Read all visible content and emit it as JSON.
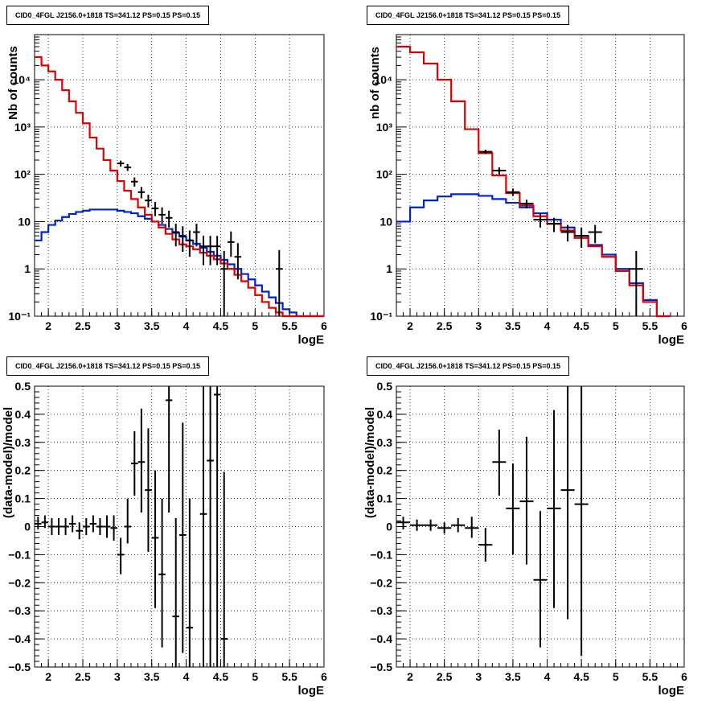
{
  "panels": [
    {
      "title": "CID0_4FGL J2156.0+1818 TS=341.12 PS=0.15 PS=0.15",
      "xlabel": "logE",
      "ylabel": "Nb of counts"
    },
    {
      "title": "CID0_4FGL J2156.0+1818 TS=341.12 PS=0.15 PS=0.15",
      "xlabel": "logE",
      "ylabel": "nb of counts"
    },
    {
      "title": "CID0_4FGL J2156.0+1818 TS=341.12 PS=0.15 PS=0.15",
      "xlabel": "logE",
      "ylabel": "(data-model)/model"
    },
    {
      "title": "CID0_4FGL J2156.0+1818 TS=341.12 PS=0.15 PS=0.15",
      "xlabel": "logE",
      "ylabel": "(data-model)/model"
    }
  ],
  "colors": {
    "total_model": "#dd0000",
    "source_model": "#0022cc",
    "data": "#000000",
    "grid": "#000000"
  },
  "chart_data": [
    {
      "type": "line",
      "title": "CID0_4FGL J2156.0+1818 TS=341.12 PS=0.15 PS=0.15",
      "xlabel": "logE",
      "ylabel": "Nb of counts",
      "xlim": [
        1.8,
        6.0
      ],
      "ylim": [
        0.1,
        90000
      ],
      "yscale": "log",
      "grid": true,
      "xticks": [
        "2",
        "2.5",
        "3",
        "3.5",
        "4",
        "4.5",
        "5",
        "5.5",
        "6"
      ],
      "yticks": [
        "10⁻¹",
        "1",
        "10",
        "10²",
        "10³",
        "10⁴"
      ],
      "bin_edges": [
        1.8,
        1.9,
        2.0,
        2.1,
        2.2,
        2.3,
        2.4,
        2.5,
        2.6,
        2.7,
        2.8,
        2.9,
        3.0,
        3.1,
        3.2,
        3.3,
        3.4,
        3.5,
        3.6,
        3.7,
        3.8,
        3.9,
        4.0,
        4.1,
        4.2,
        4.3,
        4.4,
        4.5,
        4.6,
        4.7,
        4.8,
        4.9,
        5.0,
        5.1,
        5.2,
        5.3,
        5.4,
        5.5,
        5.6,
        5.7,
        5.8,
        5.9,
        6.0
      ],
      "series": [
        {
          "name": "total model",
          "values": [
            30000,
            20000,
            15000,
            10000,
            6000,
            3500,
            2000,
            1200,
            600,
            350,
            200,
            120,
            72,
            45,
            30,
            20,
            14,
            10,
            7.5,
            5.5,
            4.2,
            3.3,
            3.0,
            2.6,
            2.2,
            1.9,
            1.6,
            1.3,
            1.0,
            0.75,
            0.55,
            0.4,
            0.28,
            0.2,
            0.15,
            0.12,
            0.1,
            0.1,
            0.1,
            0.1,
            0.1,
            0.1
          ]
        },
        {
          "name": "source model",
          "values": [
            4.0,
            6.0,
            8.5,
            10.5,
            12.5,
            14.5,
            16.0,
            17.0,
            18.0,
            18.0,
            18.0,
            18.0,
            17.0,
            16.0,
            15.0,
            13.0,
            11.5,
            10.0,
            8.5,
            7.0,
            5.8,
            4.8,
            4.0,
            3.4,
            2.8,
            2.3,
            1.9,
            1.55,
            1.25,
            1.0,
            0.78,
            0.6,
            0.45,
            0.33,
            0.25,
            0.19,
            0.14,
            0.12,
            0.1,
            0.1,
            0.1,
            0.1
          ]
        }
      ],
      "points": [
        {
          "x": 3.05,
          "y": 170,
          "ylo": 145,
          "yhi": 195
        },
        {
          "x": 3.15,
          "y": 140,
          "ylo": 118,
          "yhi": 165
        },
        {
          "x": 3.25,
          "y": 70,
          "ylo": 55,
          "yhi": 86
        },
        {
          "x": 3.35,
          "y": 42,
          "ylo": 31,
          "yhi": 54
        },
        {
          "x": 3.45,
          "y": 28,
          "ylo": 20,
          "yhi": 37
        },
        {
          "x": 3.55,
          "y": 19,
          "ylo": 13,
          "yhi": 26
        },
        {
          "x": 3.65,
          "y": 14,
          "ylo": 9,
          "yhi": 20
        },
        {
          "x": 3.75,
          "y": 12,
          "ylo": 7.5,
          "yhi": 17
        },
        {
          "x": 3.85,
          "y": 6,
          "ylo": 3,
          "yhi": 9
        },
        {
          "x": 3.95,
          "y": 5,
          "ylo": 2.3,
          "yhi": 8
        },
        {
          "x": 4.05,
          "y": 4,
          "ylo": 1.8,
          "yhi": 6.5
        },
        {
          "x": 4.15,
          "y": 6,
          "ylo": 3,
          "yhi": 9
        },
        {
          "x": 4.25,
          "y": 3,
          "ylo": 1.2,
          "yhi": 5
        },
        {
          "x": 4.35,
          "y": 3,
          "ylo": 1.2,
          "yhi": 5
        },
        {
          "x": 4.45,
          "y": 3,
          "ylo": 1.2,
          "yhi": 5
        },
        {
          "x": 4.55,
          "y": 1.0,
          "ylo": 0.1,
          "yhi": 2.4
        },
        {
          "x": 4.65,
          "y": 3.7,
          "ylo": 1.8,
          "yhi": 6.2
        },
        {
          "x": 4.75,
          "y": 1.8,
          "ylo": 0.6,
          "yhi": 3.5
        },
        {
          "x": 5.35,
          "y": 1.0,
          "ylo": 0.1,
          "yhi": 2.5
        }
      ]
    },
    {
      "type": "line",
      "title": "CID0_4FGL J2156.0+1818 TS=341.12 PS=0.15 PS=0.15",
      "xlabel": "logE",
      "ylabel": "nb of counts",
      "xlim": [
        1.8,
        6.0
      ],
      "ylim": [
        0.1,
        90000
      ],
      "yscale": "log",
      "grid": true,
      "xticks": [
        "2",
        "2.5",
        "3",
        "3.5",
        "4",
        "4.5",
        "5",
        "5.5",
        "6"
      ],
      "yticks": [
        "10⁻¹",
        "1",
        "10",
        "10²",
        "10³",
        "10⁴"
      ],
      "bin_edges": [
        1.8,
        2.0,
        2.2,
        2.4,
        2.6,
        2.8,
        3.0,
        3.2,
        3.4,
        3.6,
        3.8,
        4.0,
        4.2,
        4.4,
        4.6,
        4.8,
        5.0,
        5.2,
        5.4,
        5.6,
        5.8,
        6.0
      ],
      "series": [
        {
          "name": "total model",
          "values": [
            50000,
            38000,
            22000,
            10000,
            3500,
            900,
            280,
            95,
            40,
            22,
            13,
            9,
            6.5,
            4.5,
            3.0,
            1.8,
            0.9,
            0.45,
            0.2,
            0.1
          ]
        },
        {
          "name": "source model",
          "values": [
            10,
            20,
            28,
            34,
            38,
            38,
            35,
            30,
            25,
            20,
            15,
            11,
            7.5,
            5.0,
            3.2,
            2.0,
            1.0,
            0.5,
            0.22,
            0.1
          ]
        }
      ],
      "points": [
        {
          "x": 3.1,
          "y": 300,
          "ylo": 270,
          "yhi": 330
        },
        {
          "x": 3.3,
          "y": 120,
          "ylo": 100,
          "yhi": 140
        },
        {
          "x": 3.5,
          "y": 42,
          "ylo": 35,
          "yhi": 50
        },
        {
          "x": 3.7,
          "y": 24,
          "ylo": 19,
          "yhi": 29
        },
        {
          "x": 3.9,
          "y": 11,
          "ylo": 7.5,
          "yhi": 15
        },
        {
          "x": 4.1,
          "y": 9,
          "ylo": 6,
          "yhi": 12
        },
        {
          "x": 4.3,
          "y": 6,
          "ylo": 3.8,
          "yhi": 8.5
        },
        {
          "x": 4.5,
          "y": 5,
          "ylo": 2.8,
          "yhi": 7.5
        },
        {
          "x": 4.7,
          "y": 6,
          "ylo": 3.5,
          "yhi": 8.5
        },
        {
          "x": 5.3,
          "y": 1.0,
          "ylo": 0.1,
          "yhi": 2.4
        }
      ]
    },
    {
      "type": "scatter",
      "title": "CID0_4FGL J2156.0+1818 TS=341.12 PS=0.15 PS=0.15",
      "xlabel": "logE",
      "ylabel": "(data-model)/model",
      "xlim": [
        1.8,
        6.0
      ],
      "ylim": [
        -0.5,
        0.5
      ],
      "grid": true,
      "xticks": [
        "2",
        "2.5",
        "3",
        "3.5",
        "4",
        "4.5",
        "5",
        "5.5",
        "6"
      ],
      "yticks": [
        "−0.5",
        "−0.4",
        "−0.3",
        "−0.2",
        "−0.1",
        "0",
        "0.1",
        "0.2",
        "0.3",
        "0.4",
        "0.5"
      ],
      "xerr": 0.05,
      "points": [
        {
          "x": 1.85,
          "y": 0.01,
          "ylo": -0.01,
          "yhi": 0.035
        },
        {
          "x": 1.95,
          "y": 0.015,
          "ylo": -0.005,
          "yhi": 0.04
        },
        {
          "x": 2.05,
          "y": 0.0,
          "ylo": -0.03,
          "yhi": 0.03
        },
        {
          "x": 2.15,
          "y": 0.0,
          "ylo": -0.03,
          "yhi": 0.03
        },
        {
          "x": 2.25,
          "y": 0.0,
          "ylo": -0.03,
          "yhi": 0.03
        },
        {
          "x": 2.35,
          "y": 0.01,
          "ylo": -0.02,
          "yhi": 0.04
        },
        {
          "x": 2.45,
          "y": -0.015,
          "ylo": -0.045,
          "yhi": 0.015
        },
        {
          "x": 2.55,
          "y": 0.0,
          "ylo": -0.03,
          "yhi": 0.03
        },
        {
          "x": 2.65,
          "y": 0.01,
          "ylo": -0.02,
          "yhi": 0.04
        },
        {
          "x": 2.75,
          "y": 0.0,
          "ylo": -0.03,
          "yhi": 0.03
        },
        {
          "x": 2.85,
          "y": 0.0,
          "ylo": -0.04,
          "yhi": 0.04
        },
        {
          "x": 2.95,
          "y": -0.005,
          "ylo": -0.05,
          "yhi": 0.04
        },
        {
          "x": 3.05,
          "y": -0.1,
          "ylo": -0.17,
          "yhi": -0.04
        },
        {
          "x": 3.15,
          "y": 0.0,
          "ylo": -0.06,
          "yhi": 0.1
        },
        {
          "x": 3.25,
          "y": 0.225,
          "ylo": 0.11,
          "yhi": 0.34
        },
        {
          "x": 3.35,
          "y": 0.23,
          "ylo": 0.05,
          "yhi": 0.42
        },
        {
          "x": 3.45,
          "y": 0.13,
          "ylo": -0.09,
          "yhi": 0.35
        },
        {
          "x": 3.55,
          "y": -0.04,
          "ylo": -0.29,
          "yhi": 0.2
        },
        {
          "x": 3.65,
          "y": -0.17,
          "ylo": -0.43,
          "yhi": 0.1
        },
        {
          "x": 3.75,
          "y": 0.45,
          "ylo": 0.05,
          "yhi": 0.5
        },
        {
          "x": 3.85,
          "y": -0.32,
          "ylo": -0.5,
          "yhi": 0.03
        },
        {
          "x": 3.95,
          "y": -0.03,
          "ylo": -0.45,
          "yhi": 0.37
        },
        {
          "x": 4.05,
          "y": -0.36,
          "ylo": -0.5,
          "yhi": 0.1
        },
        {
          "x": 4.25,
          "y": 0.045,
          "ylo": -0.5,
          "yhi": 0.5
        },
        {
          "x": 4.35,
          "y": 0.235,
          "ylo": -0.5,
          "yhi": 0.5
        },
        {
          "x": 4.45,
          "y": 0.47,
          "ylo": -0.5,
          "yhi": 0.5
        },
        {
          "x": 4.55,
          "y": -0.4,
          "ylo": -0.5,
          "yhi": 0.195
        }
      ]
    },
    {
      "type": "scatter",
      "title": "CID0_4FGL J2156.0+1818 TS=341.12 PS=0.15 PS=0.15",
      "xlabel": "logE",
      "ylabel": "(data-model)/model",
      "xlim": [
        1.8,
        6.0
      ],
      "ylim": [
        -0.5,
        0.5
      ],
      "grid": true,
      "xticks": [
        "2",
        "2.5",
        "3",
        "3.5",
        "4",
        "4.5",
        "5",
        "5.5",
        "6"
      ],
      "yticks": [
        "−0.5",
        "−0.4",
        "−0.3",
        "−0.2",
        "−0.1",
        "0",
        "0.1",
        "0.2",
        "0.3",
        "0.4",
        "0.5"
      ],
      "xerr": 0.1,
      "points": [
        {
          "x": 1.9,
          "y": 0.015,
          "ylo": -0.01,
          "yhi": 0.035
        },
        {
          "x": 2.1,
          "y": 0.005,
          "ylo": -0.015,
          "yhi": 0.025
        },
        {
          "x": 2.3,
          "y": 0.005,
          "ylo": -0.015,
          "yhi": 0.025
        },
        {
          "x": 2.5,
          "y": -0.005,
          "ylo": -0.025,
          "yhi": 0.015
        },
        {
          "x": 2.7,
          "y": 0.005,
          "ylo": -0.02,
          "yhi": 0.03
        },
        {
          "x": 2.9,
          "y": -0.005,
          "ylo": -0.04,
          "yhi": 0.035
        },
        {
          "x": 3.1,
          "y": -0.065,
          "ylo": -0.125,
          "yhi": -0.005
        },
        {
          "x": 3.3,
          "y": 0.23,
          "ylo": 0.11,
          "yhi": 0.345
        },
        {
          "x": 3.5,
          "y": 0.065,
          "ylo": -0.1,
          "yhi": 0.225
        },
        {
          "x": 3.7,
          "y": 0.09,
          "ylo": -0.135,
          "yhi": 0.32
        },
        {
          "x": 3.9,
          "y": -0.19,
          "ylo": -0.43,
          "yhi": 0.055
        },
        {
          "x": 4.1,
          "y": 0.065,
          "ylo": -0.29,
          "yhi": 0.415
        },
        {
          "x": 4.3,
          "y": 0.13,
          "ylo": -0.33,
          "yhi": 0.5
        },
        {
          "x": 4.5,
          "y": 0.08,
          "ylo": -0.46,
          "yhi": 0.5
        }
      ]
    }
  ]
}
